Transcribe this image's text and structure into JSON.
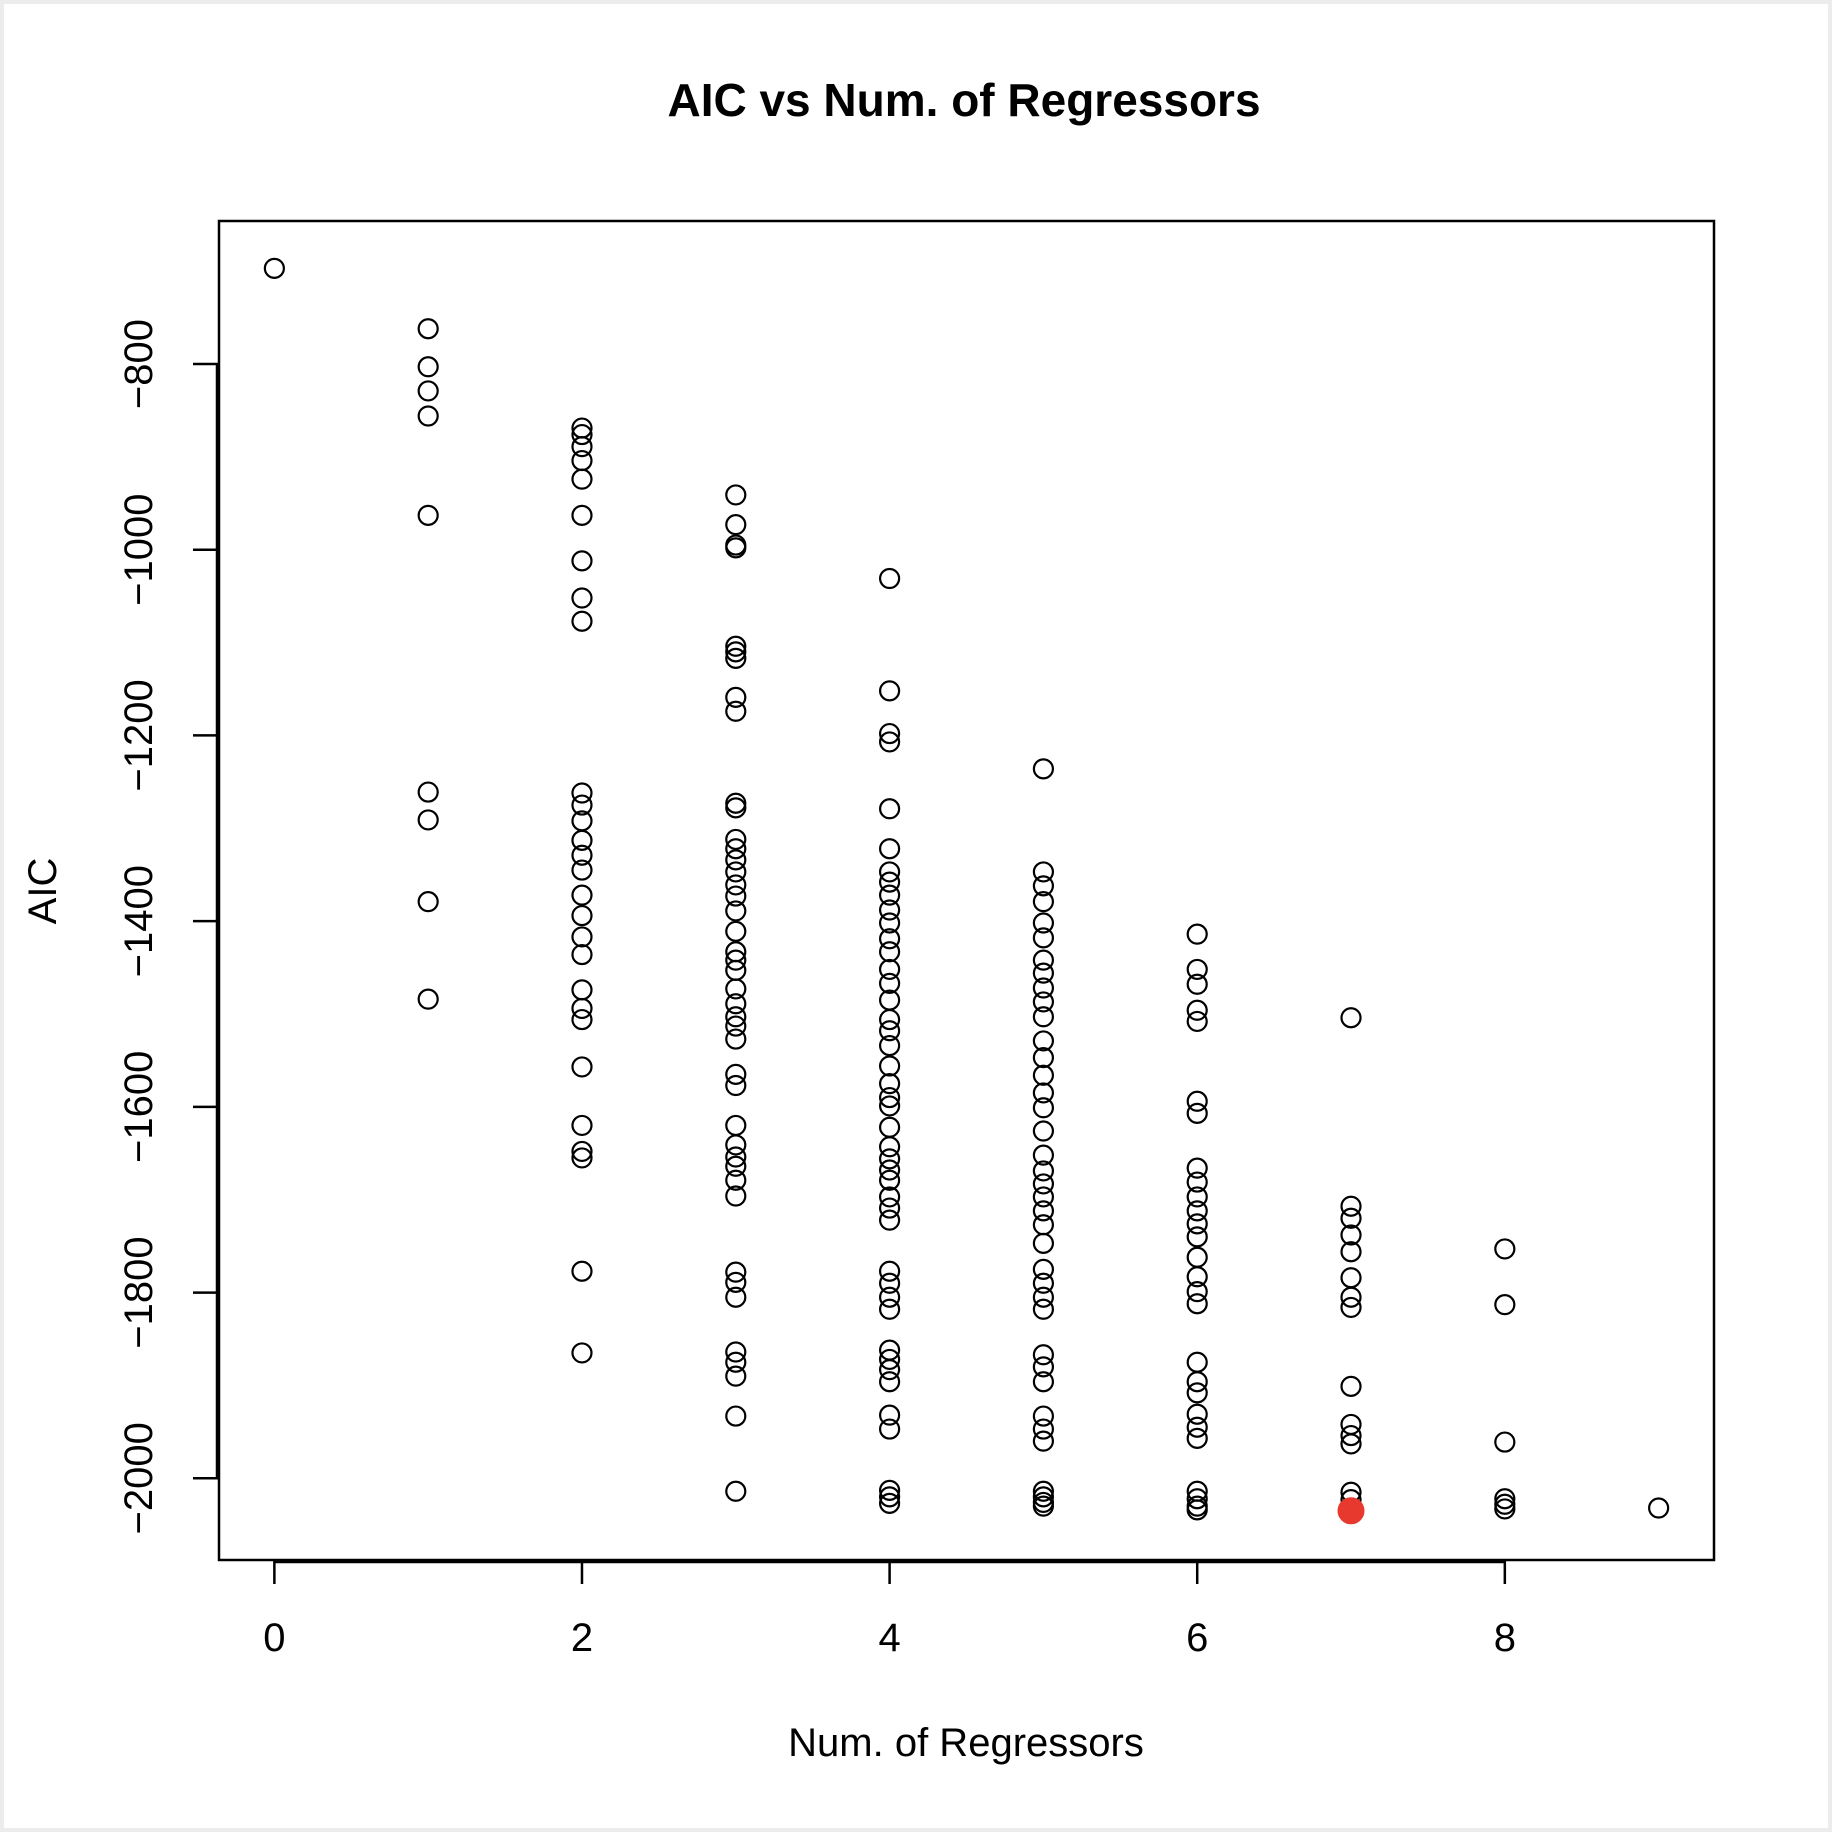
{
  "chart_data": {
    "type": "scatter",
    "title": "AIC vs Num. of Regressors",
    "xlabel": "Num. of Regressors",
    "ylabel": "AIC",
    "xlim": [
      -0.36,
      9.36
    ],
    "ylim": [
      -2088,
      -646
    ],
    "xticks": [
      0,
      2,
      4,
      6,
      8
    ],
    "yticks": [
      -800,
      -1000,
      -1200,
      -1400,
      -1600,
      -1800,
      -2000
    ],
    "grid": false,
    "legend": "none",
    "colors": {
      "points": "#000000",
      "highlight": "#e8392f"
    },
    "series": [
      {
        "points": [
          [
            0,
            -697
          ],
          [
            1,
            -762
          ],
          [
            1,
            -803
          ],
          [
            1,
            -829
          ],
          [
            1,
            -856
          ],
          [
            1,
            -963
          ],
          [
            1,
            -1261
          ],
          [
            1,
            -1291
          ],
          [
            1,
            -1379
          ],
          [
            1,
            -1484
          ],
          [
            2,
            -869
          ],
          [
            2,
            -876
          ],
          [
            2,
            -889
          ],
          [
            2,
            -904
          ],
          [
            2,
            -924
          ],
          [
            2,
            -963
          ],
          [
            2,
            -1012
          ],
          [
            2,
            -1052
          ],
          [
            2,
            -1077
          ],
          [
            2,
            -1262
          ],
          [
            2,
            -1275
          ],
          [
            2,
            -1292
          ],
          [
            2,
            -1313
          ],
          [
            2,
            -1329
          ],
          [
            2,
            -1345
          ],
          [
            2,
            -1372
          ],
          [
            2,
            -1394
          ],
          [
            2,
            -1417
          ],
          [
            2,
            -1436
          ],
          [
            2,
            -1474
          ],
          [
            2,
            -1494
          ],
          [
            2,
            -1506
          ],
          [
            2,
            -1557
          ],
          [
            2,
            -1620
          ],
          [
            2,
            -1648
          ],
          [
            2,
            -1655
          ],
          [
            2,
            -1777
          ],
          [
            2,
            -1865
          ],
          [
            3,
            -941
          ],
          [
            3,
            -973
          ],
          [
            3,
            -995
          ],
          [
            3,
            -998
          ],
          [
            3,
            -1104
          ],
          [
            3,
            -1110
          ],
          [
            3,
            -1117
          ],
          [
            3,
            -1159
          ],
          [
            3,
            -1174
          ],
          [
            3,
            -1273
          ],
          [
            3,
            -1278
          ],
          [
            3,
            -1312
          ],
          [
            3,
            -1322
          ],
          [
            3,
            -1334
          ],
          [
            3,
            -1347
          ],
          [
            3,
            -1361
          ],
          [
            3,
            -1373
          ],
          [
            3,
            -1389
          ],
          [
            3,
            -1411
          ],
          [
            3,
            -1433
          ],
          [
            3,
            -1442
          ],
          [
            3,
            -1453
          ],
          [
            3,
            -1473
          ],
          [
            3,
            -1489
          ],
          [
            3,
            -1503
          ],
          [
            3,
            -1513
          ],
          [
            3,
            -1527
          ],
          [
            3,
            -1565
          ],
          [
            3,
            -1577
          ],
          [
            3,
            -1620
          ],
          [
            3,
            -1641
          ],
          [
            3,
            -1654
          ],
          [
            3,
            -1664
          ],
          [
            3,
            -1679
          ],
          [
            3,
            -1696
          ],
          [
            3,
            -1778
          ],
          [
            3,
            -1789
          ],
          [
            3,
            -1805
          ],
          [
            3,
            -1864
          ],
          [
            3,
            -1875
          ],
          [
            3,
            -1890
          ],
          [
            3,
            -1933
          ],
          [
            3,
            -2014
          ],
          [
            4,
            -1031
          ],
          [
            4,
            -1152
          ],
          [
            4,
            -1198
          ],
          [
            4,
            -1207
          ],
          [
            4,
            -1279
          ],
          [
            4,
            -1322
          ],
          [
            4,
            -1347
          ],
          [
            4,
            -1358
          ],
          [
            4,
            -1372
          ],
          [
            4,
            -1388
          ],
          [
            4,
            -1402
          ],
          [
            4,
            -1419
          ],
          [
            4,
            -1433
          ],
          [
            4,
            -1452
          ],
          [
            4,
            -1467
          ],
          [
            4,
            -1485
          ],
          [
            4,
            -1506
          ],
          [
            4,
            -1518
          ],
          [
            4,
            -1534
          ],
          [
            4,
            -1556
          ],
          [
            4,
            -1575
          ],
          [
            4,
            -1590
          ],
          [
            4,
            -1599
          ],
          [
            4,
            -1622
          ],
          [
            4,
            -1643
          ],
          [
            4,
            -1656
          ],
          [
            4,
            -1668
          ],
          [
            4,
            -1679
          ],
          [
            4,
            -1697
          ],
          [
            4,
            -1709
          ],
          [
            4,
            -1722
          ],
          [
            4,
            -1777
          ],
          [
            4,
            -1790
          ],
          [
            4,
            -1805
          ],
          [
            4,
            -1818
          ],
          [
            4,
            -1862
          ],
          [
            4,
            -1872
          ],
          [
            4,
            -1883
          ],
          [
            4,
            -1896
          ],
          [
            4,
            -1932
          ],
          [
            4,
            -1947
          ],
          [
            4,
            -2013
          ],
          [
            4,
            -2020
          ],
          [
            4,
            -2027
          ],
          [
            5,
            -1236
          ],
          [
            5,
            -1347
          ],
          [
            5,
            -1362
          ],
          [
            5,
            -1379
          ],
          [
            5,
            -1402
          ],
          [
            5,
            -1418
          ],
          [
            5,
            -1442
          ],
          [
            5,
            -1456
          ],
          [
            5,
            -1472
          ],
          [
            5,
            -1487
          ],
          [
            5,
            -1503
          ],
          [
            5,
            -1529
          ],
          [
            5,
            -1547
          ],
          [
            5,
            -1566
          ],
          [
            5,
            -1585
          ],
          [
            5,
            -1601
          ],
          [
            5,
            -1626
          ],
          [
            5,
            -1652
          ],
          [
            5,
            -1669
          ],
          [
            5,
            -1683
          ],
          [
            5,
            -1697
          ],
          [
            5,
            -1712
          ],
          [
            5,
            -1727
          ],
          [
            5,
            -1747
          ],
          [
            5,
            -1775
          ],
          [
            5,
            -1790
          ],
          [
            5,
            -1805
          ],
          [
            5,
            -1818
          ],
          [
            5,
            -1867
          ],
          [
            5,
            -1880
          ],
          [
            5,
            -1896
          ],
          [
            5,
            -1933
          ],
          [
            5,
            -1947
          ],
          [
            5,
            -1960
          ],
          [
            5,
            -2014
          ],
          [
            5,
            -2020
          ],
          [
            5,
            -2026
          ],
          [
            5,
            -2030
          ],
          [
            6,
            -1414
          ],
          [
            6,
            -1452
          ],
          [
            6,
            -1468
          ],
          [
            6,
            -1496
          ],
          [
            6,
            -1508
          ],
          [
            6,
            -1594
          ],
          [
            6,
            -1607
          ],
          [
            6,
            -1666
          ],
          [
            6,
            -1681
          ],
          [
            6,
            -1697
          ],
          [
            6,
            -1712
          ],
          [
            6,
            -1726
          ],
          [
            6,
            -1740
          ],
          [
            6,
            -1762
          ],
          [
            6,
            -1783
          ],
          [
            6,
            -1799
          ],
          [
            6,
            -1812
          ],
          [
            6,
            -1875
          ],
          [
            6,
            -1896
          ],
          [
            6,
            -1908
          ],
          [
            6,
            -1931
          ],
          [
            6,
            -1945
          ],
          [
            6,
            -1957
          ],
          [
            6,
            -2014
          ],
          [
            6,
            -2022
          ],
          [
            6,
            -2030
          ],
          [
            6,
            -2034
          ],
          [
            7,
            -1504
          ],
          [
            7,
            -1707
          ],
          [
            7,
            -1720
          ],
          [
            7,
            -1738
          ],
          [
            7,
            -1756
          ],
          [
            7,
            -1784
          ],
          [
            7,
            -1805
          ],
          [
            7,
            -1816
          ],
          [
            7,
            -1901
          ],
          [
            7,
            -1942
          ],
          [
            7,
            -1954
          ],
          [
            7,
            -1963
          ],
          [
            7,
            -2015
          ],
          [
            7,
            -2023
          ],
          [
            8,
            -1753
          ],
          [
            8,
            -1813
          ],
          [
            8,
            -1961
          ],
          [
            8,
            -2022
          ],
          [
            8,
            -2028
          ],
          [
            8,
            -2033
          ],
          [
            9,
            -2032
          ]
        ]
      }
    ],
    "highlight": {
      "x": 7,
      "y": -2035
    }
  }
}
